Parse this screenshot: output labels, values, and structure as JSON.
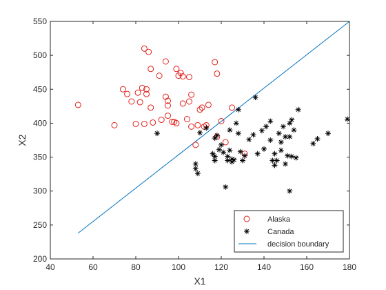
{
  "chart_data": {
    "type": "scatter",
    "title": "",
    "xlabel": "X1",
    "ylabel": "X2",
    "xlim": [
      40,
      180
    ],
    "ylim": [
      200,
      550
    ],
    "xticks": [
      "40",
      "60",
      "80",
      "100",
      "120",
      "140",
      "160",
      "180"
    ],
    "yticks": [
      "200",
      "250",
      "300",
      "350",
      "400",
      "450",
      "500",
      "550"
    ],
    "grid": false,
    "legend_position": "bottom-right",
    "series": [
      {
        "name": "Alaska",
        "marker": "circle",
        "color": "#e0201b",
        "points": [
          [
            53,
            427
          ],
          [
            70,
            397
          ],
          [
            74,
            450
          ],
          [
            76,
            443
          ],
          [
            78,
            432
          ],
          [
            80,
            399
          ],
          [
            81,
            445
          ],
          [
            82,
            431
          ],
          [
            83,
            452
          ],
          [
            84,
            510
          ],
          [
            84,
            399
          ],
          [
            85,
            450
          ],
          [
            85,
            443
          ],
          [
            86,
            505
          ],
          [
            87,
            480
          ],
          [
            87,
            423
          ],
          [
            88,
            401
          ],
          [
            91,
            470
          ],
          [
            92,
            405
          ],
          [
            94,
            491
          ],
          [
            94,
            439
          ],
          [
            95,
            433
          ],
          [
            95,
            426
          ],
          [
            95,
            411
          ],
          [
            97,
            402
          ],
          [
            98,
            402
          ],
          [
            99,
            480
          ],
          [
            99,
            400
          ],
          [
            100,
            470
          ],
          [
            101,
            474
          ],
          [
            102,
            469
          ],
          [
            102,
            429
          ],
          [
            104,
            406
          ],
          [
            105,
            468
          ],
          [
            105,
            432
          ],
          [
            106,
            395
          ],
          [
            106,
            442
          ],
          [
            108,
            368
          ],
          [
            109,
            397
          ],
          [
            110,
            420
          ],
          [
            111,
            423
          ],
          [
            112,
            395
          ],
          [
            113,
            397
          ],
          [
            114,
            427
          ],
          [
            117,
            490
          ],
          [
            118,
            473
          ],
          [
            118,
            380
          ],
          [
            120,
            403
          ],
          [
            122,
            372
          ],
          [
            125,
            423
          ],
          [
            131,
            355
          ]
        ]
      },
      {
        "name": "Canada",
        "marker": "asterisk",
        "color": "#000000",
        "points": [
          [
            90,
            385
          ],
          [
            108,
            340
          ],
          [
            108,
            333
          ],
          [
            109,
            326
          ],
          [
            110,
            386
          ],
          [
            113,
            393
          ],
          [
            116,
            355
          ],
          [
            117,
            351
          ],
          [
            117,
            345
          ],
          [
            117,
            378
          ],
          [
            118,
            382
          ],
          [
            119,
            361
          ],
          [
            120,
            368
          ],
          [
            121,
            357
          ],
          [
            122,
            306
          ],
          [
            123,
            351
          ],
          [
            123,
            345
          ],
          [
            124,
            390
          ],
          [
            124,
            360
          ],
          [
            125,
            343
          ],
          [
            125,
            347
          ],
          [
            126,
            346
          ],
          [
            127,
            400
          ],
          [
            128,
            420
          ],
          [
            128,
            385
          ],
          [
            129,
            358
          ],
          [
            130,
            345
          ],
          [
            131,
            352
          ],
          [
            133,
            376
          ],
          [
            135,
            383
          ],
          [
            136,
            438
          ],
          [
            137,
            355
          ],
          [
            139,
            389
          ],
          [
            140,
            362
          ],
          [
            141,
            395
          ],
          [
            143,
            403
          ],
          [
            143,
            375
          ],
          [
            144,
            345
          ],
          [
            145,
            338
          ],
          [
            145,
            355
          ],
          [
            146,
            345
          ],
          [
            147,
            385
          ],
          [
            148,
            372
          ],
          [
            148,
            360
          ],
          [
            149,
            395
          ],
          [
            150,
            380
          ],
          [
            150,
            340
          ],
          [
            151,
            352
          ],
          [
            152,
            300
          ],
          [
            152,
            380
          ],
          [
            152,
            400
          ],
          [
            153,
            405
          ],
          [
            153,
            351
          ],
          [
            154,
            390
          ],
          [
            155,
            349
          ],
          [
            156,
            420
          ],
          [
            163,
            370
          ],
          [
            165,
            377
          ],
          [
            170,
            385
          ],
          [
            179,
            406
          ]
        ]
      },
      {
        "name": "decision boundary",
        "marker": "line",
        "color": "#0072bd",
        "points": [
          [
            53,
            238
          ],
          [
            180,
            550
          ]
        ]
      }
    ]
  }
}
